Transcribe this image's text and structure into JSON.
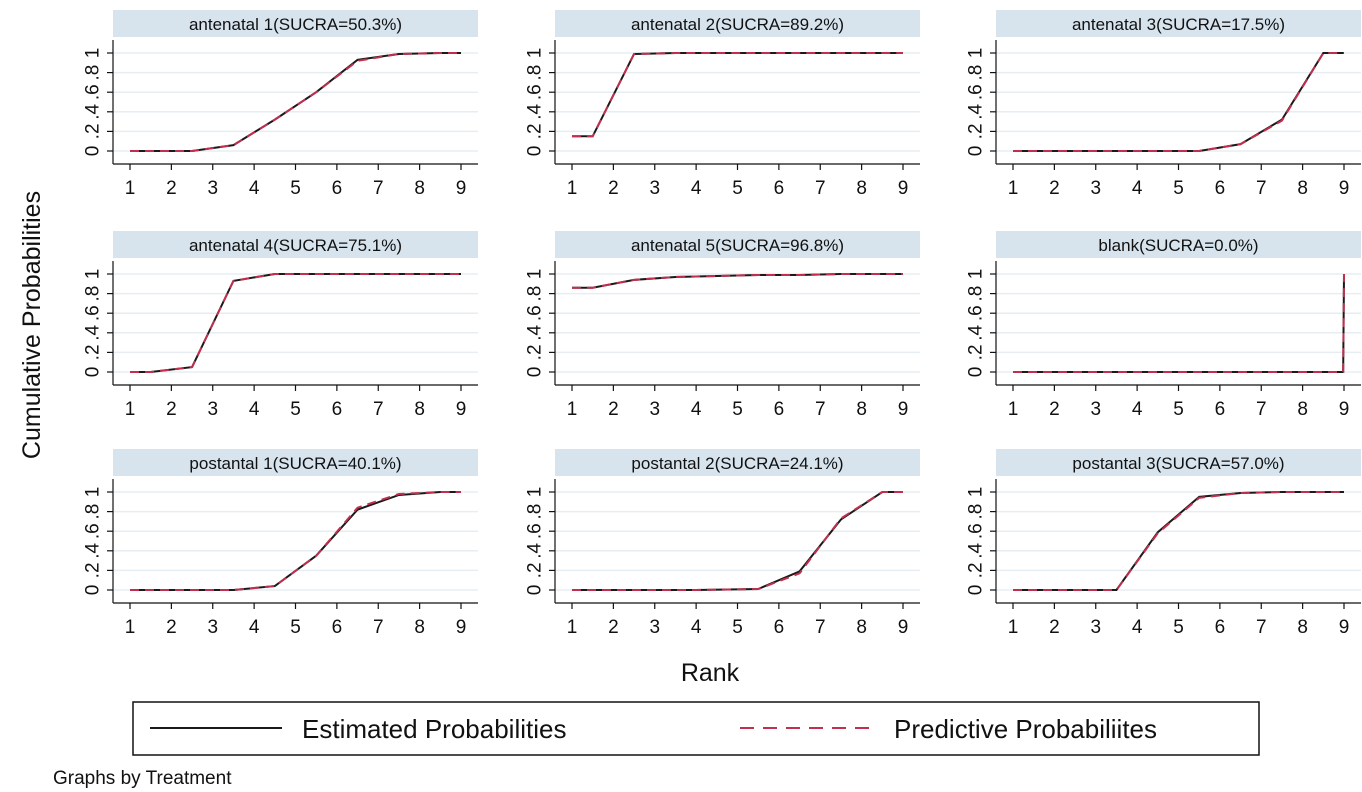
{
  "figure": {
    "note": "Graphs by Treatment"
  },
  "colors": {
    "strip": "#d7e4ee",
    "grid": "#e6eef3",
    "estimated": "#1a1a1a",
    "predictive": "#c0304e"
  },
  "chart_data": {
    "type": "line",
    "xlabel": "Rank",
    "ylabel": "Cumulative Probabilities",
    "x_ticks": [
      "1",
      "2",
      "3",
      "4",
      "5",
      "6",
      "7",
      "8",
      "9"
    ],
    "y_tick_labels": [
      "0",
      ".2",
      ".4",
      ".6",
      ".8",
      "1"
    ],
    "xlim": [
      1,
      9
    ],
    "ylim": [
      0,
      1
    ],
    "grid": true,
    "legend": {
      "position": "bottom",
      "entries": [
        {
          "label": "Estimated Probabilities",
          "style": "solid"
        },
        {
          "label": "Predictive Probabiliites",
          "style": "dashed"
        }
      ]
    },
    "panels": [
      {
        "title": "antenatal 1(SUCRA=50.3%)",
        "x": [
          1,
          2,
          2.5,
          3.5,
          4.5,
          5.5,
          6.5,
          7.5,
          8.5,
          9
        ],
        "estimated": [
          0,
          0,
          0,
          0.06,
          0.32,
          0.6,
          0.93,
          0.99,
          1,
          1
        ],
        "predictive": [
          0,
          0,
          0,
          0.06,
          0.32,
          0.6,
          0.92,
          0.99,
          1,
          1
        ]
      },
      {
        "title": "antenatal 2(SUCRA=89.2%)",
        "x": [
          1,
          1.5,
          2.5,
          3.5,
          4.5,
          5.5,
          6.5,
          7.5,
          8.5,
          9
        ],
        "estimated": [
          0.15,
          0.15,
          0.99,
          1,
          1,
          1,
          1,
          1,
          1,
          1
        ],
        "predictive": [
          0.15,
          0.15,
          0.99,
          1,
          1,
          1,
          1,
          1,
          1,
          1
        ]
      },
      {
        "title": "antenatal 3(SUCRA=17.5%)",
        "x": [
          1,
          2,
          3,
          4,
          5.5,
          6.5,
          7.5,
          8.5,
          9
        ],
        "estimated": [
          0,
          0,
          0,
          0,
          0,
          0.07,
          0.32,
          1,
          1
        ],
        "predictive": [
          0,
          0,
          0,
          0,
          0,
          0.07,
          0.31,
          1,
          1
        ]
      },
      {
        "title": "antenatal 4(SUCRA=75.1%)",
        "x": [
          1,
          1.5,
          2.5,
          3.5,
          4.5,
          5.5,
          6.5,
          7.5,
          8.5,
          9
        ],
        "estimated": [
          0,
          0,
          0.05,
          0.93,
          1,
          1,
          1,
          1,
          1,
          1
        ],
        "predictive": [
          0,
          0,
          0.05,
          0.93,
          1,
          1,
          1,
          1,
          1,
          1
        ]
      },
      {
        "title": "antenatal 5(SUCRA=96.8%)",
        "x": [
          1,
          1.5,
          2.5,
          3.5,
          4.5,
          5.5,
          6.5,
          7.5,
          8.5,
          9
        ],
        "estimated": [
          0.86,
          0.86,
          0.94,
          0.97,
          0.98,
          0.99,
          0.99,
          1,
          1,
          1
        ],
        "predictive": [
          0.86,
          0.86,
          0.94,
          0.97,
          0.98,
          0.99,
          0.99,
          1,
          1,
          1
        ]
      },
      {
        "title": "blank(SUCRA=0.0%)",
        "x": [
          1,
          2,
          3,
          4,
          5,
          6,
          7,
          8,
          8.98,
          9
        ],
        "estimated": [
          0,
          0,
          0,
          0,
          0,
          0,
          0,
          0,
          0,
          1
        ],
        "predictive": [
          0,
          0,
          0,
          0,
          0,
          0,
          0,
          0,
          0,
          1
        ]
      },
      {
        "title": "postantal 1(SUCRA=40.1%)",
        "x": [
          1,
          2,
          3,
          3.5,
          4.5,
          5.5,
          6.5,
          7.5,
          8.5,
          9
        ],
        "estimated": [
          0,
          0,
          0,
          0,
          0.04,
          0.35,
          0.82,
          0.97,
          1,
          1
        ],
        "predictive": [
          0,
          0,
          0,
          0,
          0.04,
          0.35,
          0.84,
          0.98,
          1,
          1
        ]
      },
      {
        "title": "postantal 2(SUCRA=24.1%)",
        "x": [
          1,
          2,
          3,
          4,
          5.5,
          6.5,
          7.5,
          8.5,
          9
        ],
        "estimated": [
          0,
          0,
          0,
          0,
          0.01,
          0.19,
          0.72,
          1,
          1
        ],
        "predictive": [
          0,
          0,
          0,
          0,
          0.01,
          0.17,
          0.73,
          1,
          1
        ]
      },
      {
        "title": "postantal 3(SUCRA=57.0%)",
        "x": [
          1,
          2,
          3,
          3.5,
          4.5,
          5.5,
          6.5,
          7.5,
          8.5,
          9
        ],
        "estimated": [
          0,
          0,
          0,
          0,
          0.59,
          0.95,
          0.99,
          1,
          1,
          1
        ],
        "predictive": [
          0,
          0,
          0,
          0,
          0.58,
          0.94,
          0.99,
          1,
          1,
          1
        ]
      }
    ]
  }
}
